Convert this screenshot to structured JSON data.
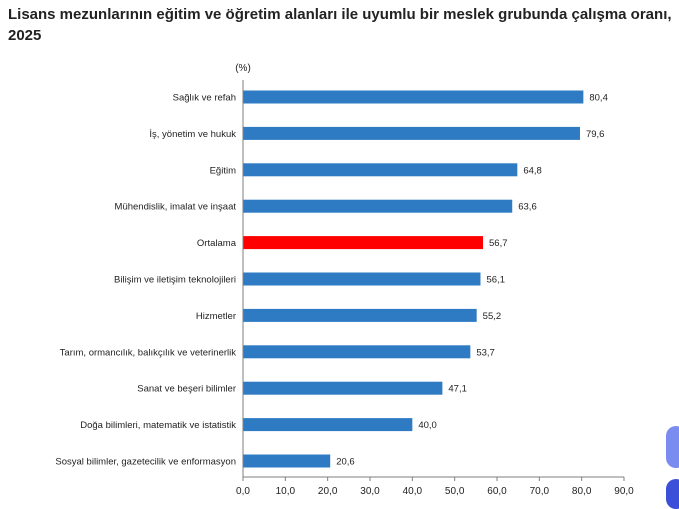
{
  "chart_data": {
    "type": "bar",
    "orientation": "horizontal",
    "title": "Lisans mezunlarının eğitim ve öğretim alanları ile uyumlu bir meslek grubunda çalışma oranı, 2025",
    "unit_label": "(%)",
    "categories": [
      "Sağlık ve refah",
      "İş, yönetim ve hukuk",
      "Eğitim",
      "Mühendislik, imalat ve inşaat",
      "Ortalama",
      "Bilişim ve iletişim teknolojileri",
      "Hizmetler",
      "Tarım, ormancılık, balıkçılık ve veterinerlik",
      "Sanat ve beşeri bilimler",
      "Doğa bilimleri, matematik ve istatistik",
      "Sosyal bilimler, gazetecilik ve enformasyon"
    ],
    "values": [
      80.4,
      79.6,
      64.8,
      63.6,
      56.7,
      56.1,
      55.2,
      53.7,
      47.1,
      40.0,
      20.6
    ],
    "value_labels": [
      "80,4",
      "79,6",
      "64,8",
      "63,6",
      "56,7",
      "56,1",
      "55,2",
      "53,7",
      "47,1",
      "40,0",
      "20,6"
    ],
    "xlim": [
      0,
      90
    ],
    "x_ticks": [
      "0,0",
      "10,0",
      "20,0",
      "30,0",
      "40,0",
      "50,0",
      "60,0",
      "70,0",
      "80,0",
      "90,0"
    ],
    "bar_color": "#2e7bc4",
    "highlight_category": "Ortalama",
    "highlight_color": "#ff0000",
    "grid": false
  }
}
